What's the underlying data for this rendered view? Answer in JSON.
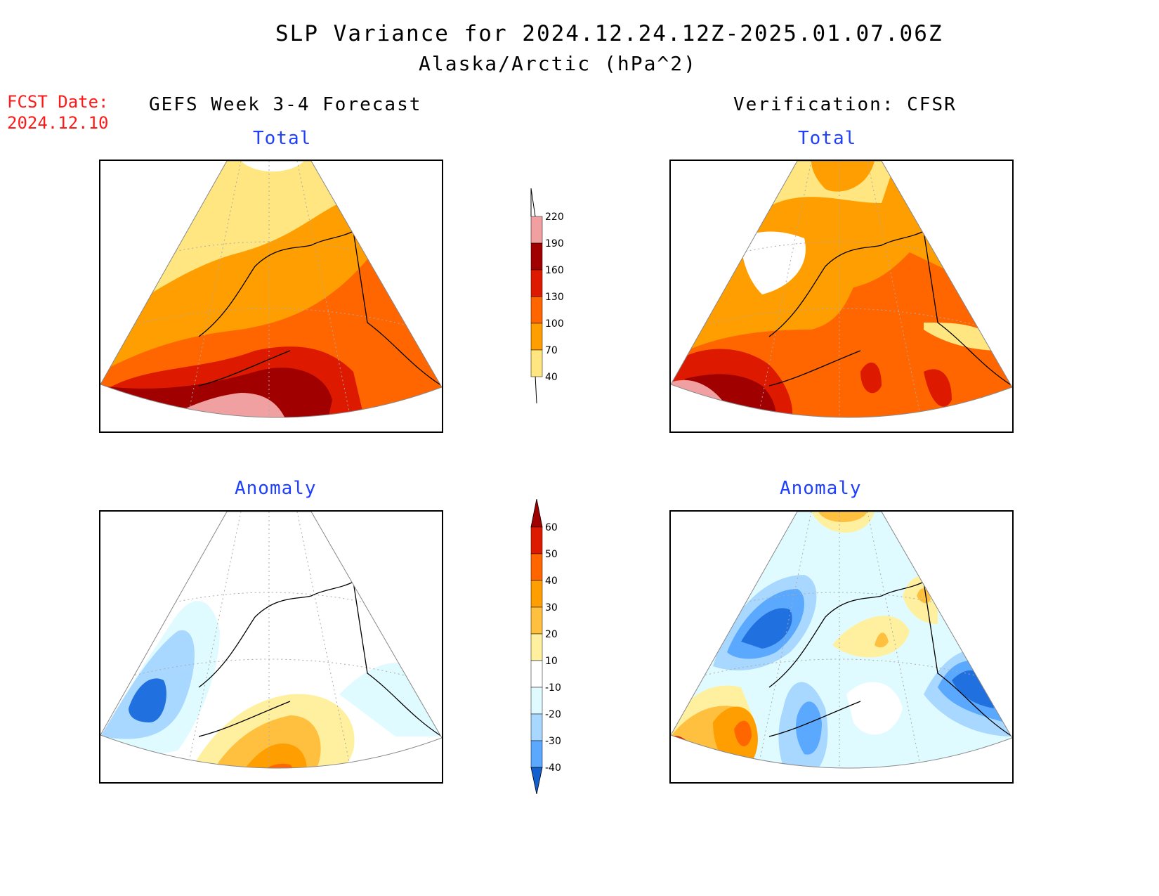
{
  "header": {
    "title": "SLP Variance for 2024.12.24.12Z-2025.01.07.06Z",
    "subtitle": "Alaska/Arctic (hPa^2)"
  },
  "forecast_date": {
    "label": "FCST Date:",
    "value": "2024.12.10"
  },
  "columns": {
    "left": "GEFS Week 3-4 Forecast",
    "right": "Verification: CFSR"
  },
  "panels": {
    "top_left": "Total",
    "top_right": "Total",
    "bottom_left": "Anomaly",
    "bottom_right": "Anomaly"
  },
  "colorbars": {
    "total": {
      "labels": [
        "220",
        "190",
        "160",
        "130",
        "100",
        "70",
        "40"
      ],
      "colors": [
        "#f0a0a0",
        "#a00000",
        "#dd1a00",
        "#ff6600",
        "#ff9e00",
        "#ffe680"
      ]
    },
    "anomaly": {
      "labels": [
        "60",
        "50",
        "40",
        "30",
        "20",
        "10",
        "-10",
        "-20",
        "-30",
        "-40"
      ],
      "colors_top": "#a00000",
      "colors_bottom": "#1060d0",
      "colors": [
        "#dd1a00",
        "#ff6600",
        "#ff9e00",
        "#ffc040",
        "#fff0a0",
        "#ffffff",
        "#e0fbff",
        "#a8d8ff",
        "#5ba8ff",
        "#2070e0"
      ]
    }
  },
  "colors": {
    "title_red": "#ff1a1a",
    "panel_title_blue": "#1f3fff"
  }
}
